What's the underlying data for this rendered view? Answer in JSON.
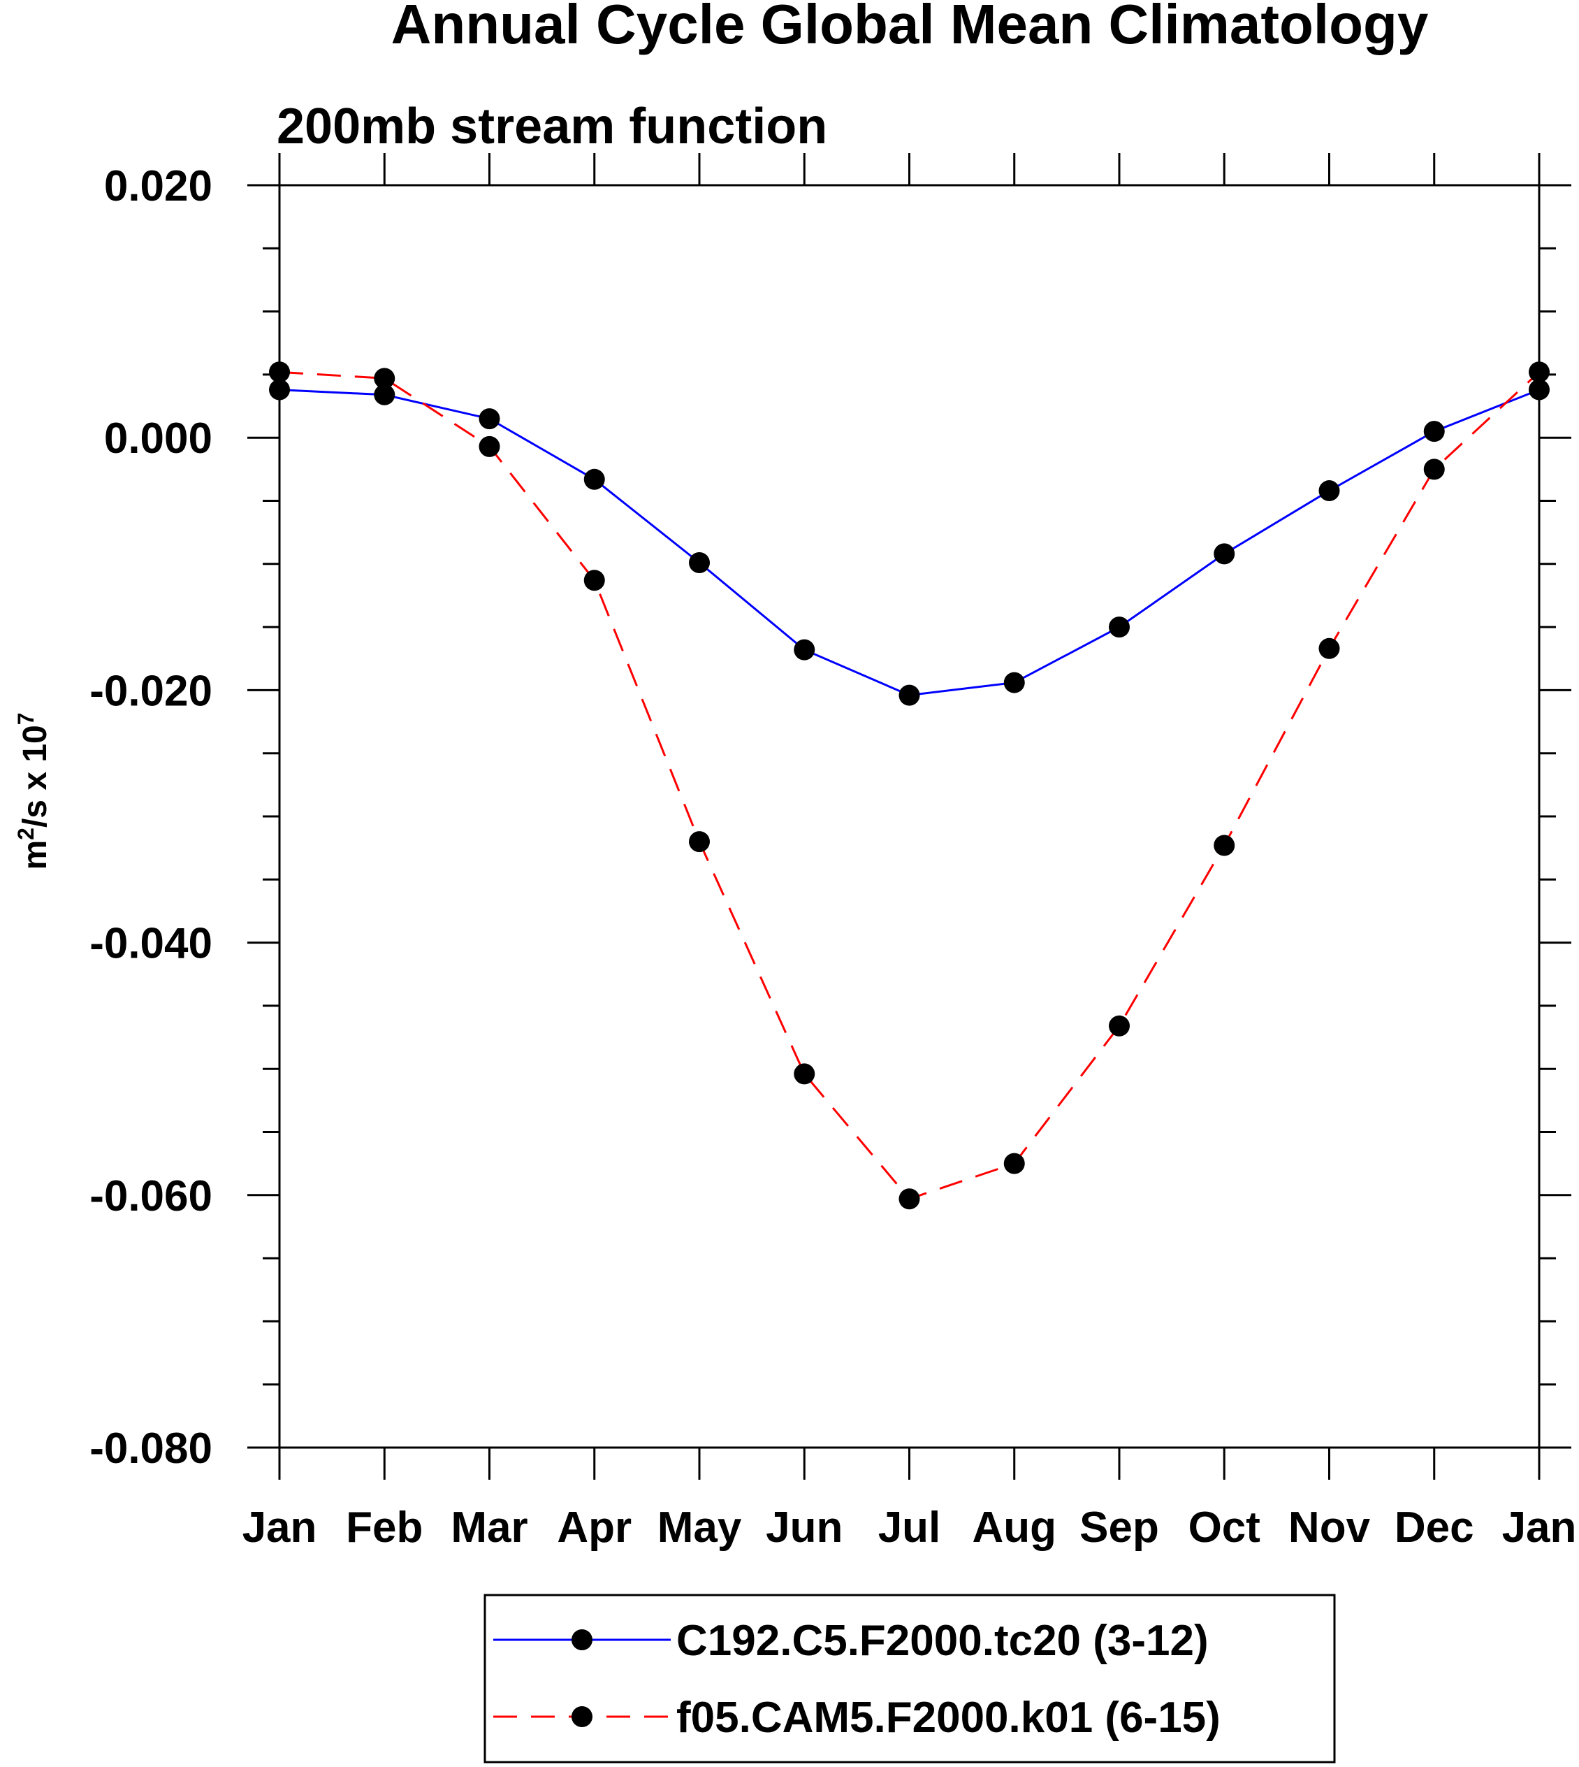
{
  "chart_data": {
    "type": "line",
    "title": "Annual Cycle Global Mean Climatology",
    "subtitle": "200mb stream function",
    "xlabel": "",
    "ylabel_base": "m",
    "ylabel_sup1": "2",
    "ylabel_mid": "/s x 10",
    "ylabel_sup2": "7",
    "categories": [
      "Jan",
      "Feb",
      "Mar",
      "Apr",
      "May",
      "Jun",
      "Jul",
      "Aug",
      "Sep",
      "Oct",
      "Nov",
      "Dec",
      "Jan"
    ],
    "ylim": [
      -0.08,
      0.02
    ],
    "yticks": [
      0.02,
      0.0,
      -0.02,
      -0.04,
      -0.06,
      -0.08
    ],
    "ytick_labels": [
      "0.020",
      "0.000",
      "-0.020",
      "-0.040",
      "-0.060",
      "-0.080"
    ],
    "yminor_step": 0.005,
    "series": [
      {
        "name": "C192.C5.F2000.tc20 (3-12)",
        "color": "#0000ff",
        "dash": "solid",
        "values": [
          0.0038,
          0.0034,
          0.0015,
          -0.0033,
          -0.0099,
          -0.0168,
          -0.0204,
          -0.0194,
          -0.015,
          -0.0092,
          -0.0042,
          0.0005,
          0.0038
        ]
      },
      {
        "name": "f05.CAM5.F2000.k01 (6-15)",
        "color": "#ff0000",
        "dash": "dashed",
        "values": [
          0.0052,
          0.0047,
          -0.0007,
          -0.0113,
          -0.032,
          -0.0504,
          -0.0603,
          -0.0575,
          -0.0466,
          -0.0323,
          -0.0167,
          -0.0025,
          0.0052
        ]
      }
    ],
    "legend_position": "bottom-center"
  }
}
